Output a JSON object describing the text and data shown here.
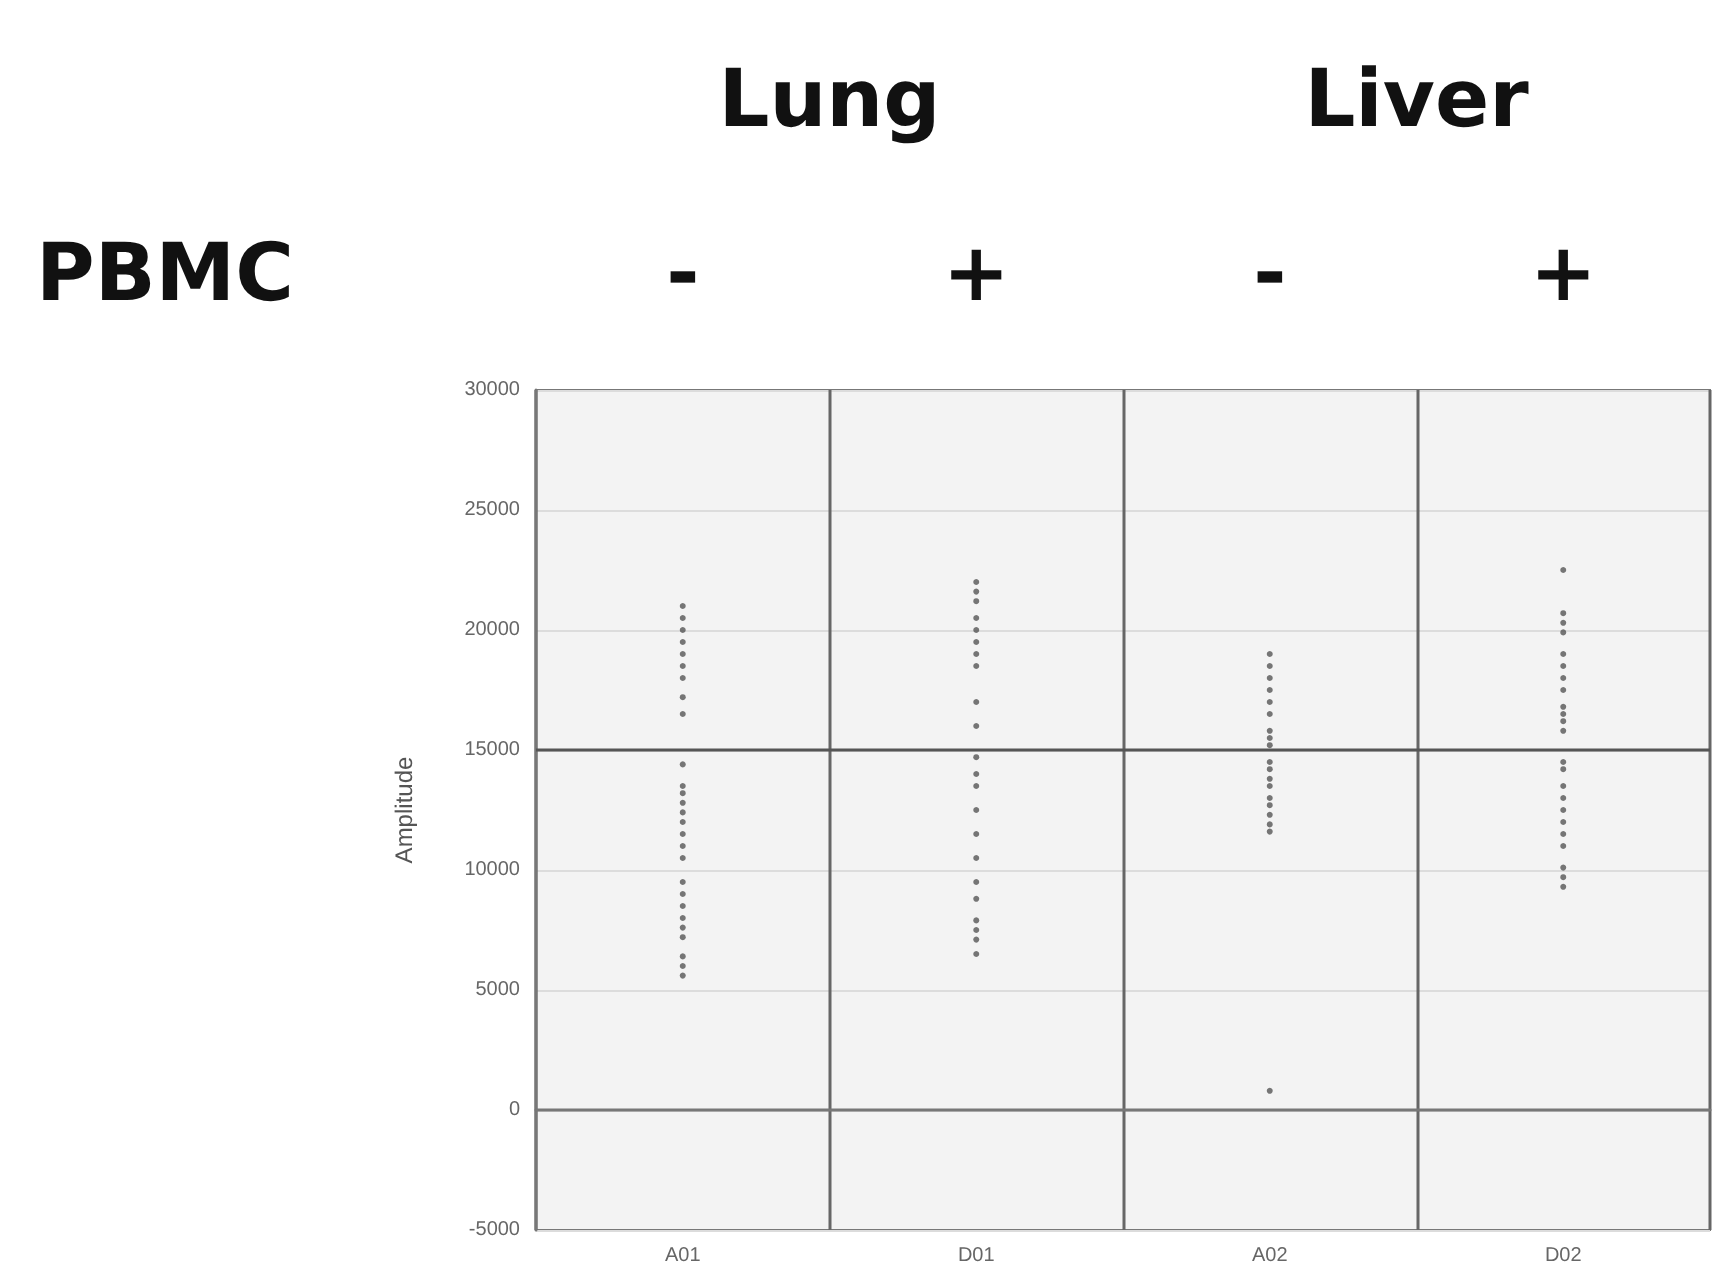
{
  "chart_data": {
    "type": "scatter",
    "ylabel": "Amplitude",
    "annotations": [
      "Lung",
      "Liver",
      "PBMC",
      "-",
      "+",
      "-",
      "+"
    ],
    "categories": [
      "A01",
      "D01",
      "A02",
      "D02"
    ],
    "ylim": [
      -5000,
      30000
    ],
    "yticks": [
      -5000,
      0,
      5000,
      10000,
      15000,
      20000,
      25000,
      30000
    ],
    "grid": true,
    "marker": "circle",
    "ref_lines": [
      {
        "axis": "y",
        "value": 15000
      }
    ],
    "series": [
      {
        "color": "#555555",
        "x": [
          "A01",
          "A01",
          "A01",
          "A01",
          "A01",
          "A01",
          "A01",
          "A01",
          "A01",
          "A01",
          "A01",
          "A01",
          "A01",
          "A01",
          "A01",
          "A01",
          "A01",
          "A01",
          "A01",
          "A01",
          "A01",
          "A01",
          "A01",
          "A01",
          "A01",
          "A01",
          "A01"
        ],
        "values": [
          5600,
          6000,
          6400,
          18500,
          21000,
          19500,
          18000,
          20500,
          16500,
          20000,
          12000,
          12800,
          11000,
          12400,
          9500,
          13500,
          11500,
          8000,
          8500,
          9000,
          17200,
          14400,
          13200,
          10500,
          7200,
          19000,
          7600
        ]
      },
      {
        "color": "#555555",
        "x": [
          "D01",
          "D01",
          "D01",
          "D01",
          "D01",
          "D01",
          "D01",
          "D01",
          "D01",
          "D01",
          "D01",
          "D01",
          "D01",
          "D01",
          "D01",
          "D01",
          "D01",
          "D01",
          "D01",
          "D01",
          "D01",
          "D01"
        ],
        "values": [
          7100,
          7500,
          7900,
          21200,
          21600,
          22000,
          19000,
          20000,
          17000,
          18500,
          19500,
          13500,
          14000,
          12500,
          9500,
          8800,
          11500,
          6500,
          16000,
          14700,
          10500,
          20500
        ]
      },
      {
        "color": "#555555",
        "x": [
          "A02",
          "A02",
          "A02",
          "A02",
          "A02",
          "A02",
          "A02",
          "A02",
          "A02",
          "A02",
          "A02",
          "A02",
          "A02",
          "A02",
          "A02",
          "A02",
          "A02",
          "A02",
          "A02"
        ],
        "values": [
          11900,
          12300,
          12700,
          16500,
          14500,
          18000,
          13500,
          17000,
          15800,
          19000,
          14200,
          13800,
          18500,
          15200,
          17500,
          15500,
          13000,
          11600,
          800
        ]
      },
      {
        "color": "#555555",
        "x": [
          "D02",
          "D02",
          "D02",
          "D02",
          "D02",
          "D02",
          "D02",
          "D02",
          "D02",
          "D02",
          "D02",
          "D02",
          "D02",
          "D02",
          "D02",
          "D02",
          "D02",
          "D02",
          "D02",
          "D02",
          "D02",
          "D02",
          "D02"
        ],
        "values": [
          19900,
          20300,
          20700,
          9300,
          9700,
          10100,
          18000,
          12000,
          16500,
          11000,
          19000,
          13500,
          17500,
          15800,
          14200,
          18500,
          12500,
          16800,
          11500,
          13000,
          14500,
          16200,
          22500
        ]
      }
    ]
  }
}
